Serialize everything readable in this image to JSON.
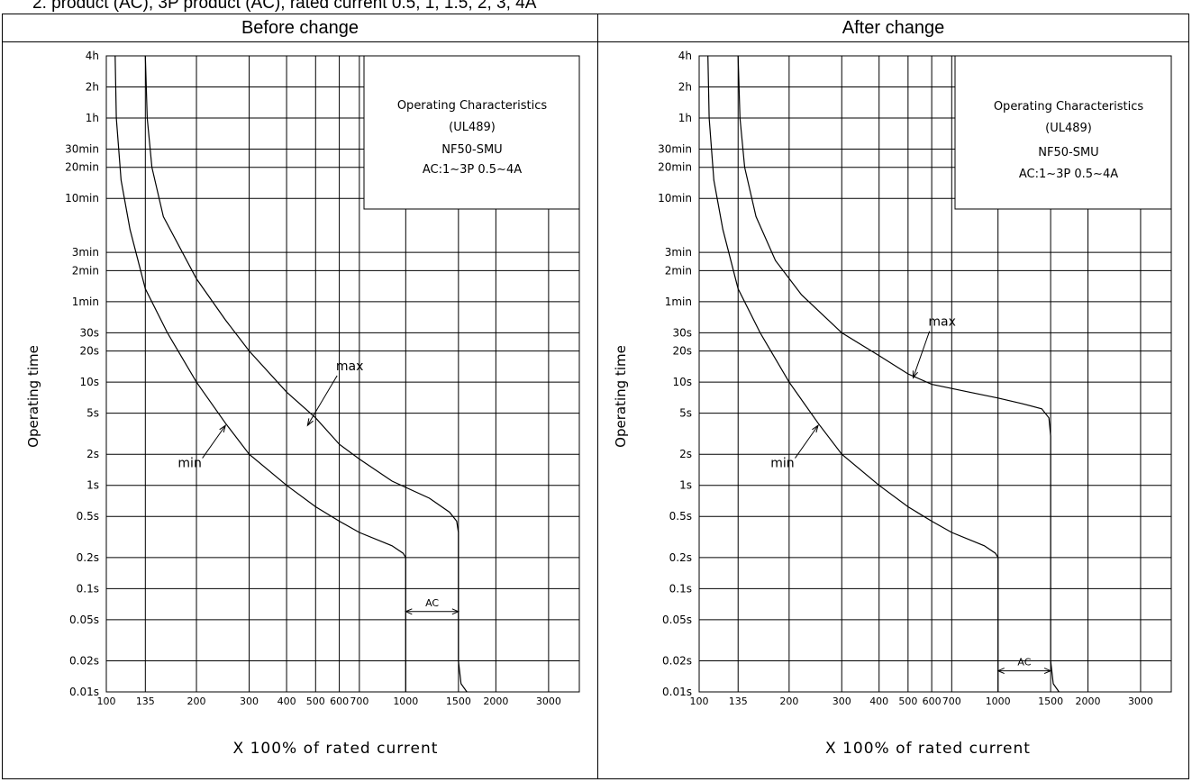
{
  "header_cut_text": "2.  product (AC), 3P product (AC), rated current 0.5, 1, 1.5, 2, 3, 4A",
  "columns": {
    "left_title": "Before change",
    "right_title": "After change"
  },
  "chart_data": [
    {
      "type": "line",
      "panel_title": "Before change",
      "title_box": [
        "Operating Characteristics",
        "(UL489)",
        "NF50-SMU",
        "AC:1∼3P 0.5∼4A"
      ],
      "xlabel": "X 100% of rated current",
      "ylabel": "Operating time",
      "x_scale": "log",
      "y_scale": "log",
      "xlim": [
        100,
        3800
      ],
      "ylim_seconds": [
        0.01,
        14400
      ],
      "x_ticks": [
        {
          "value": 100,
          "label": "100"
        },
        {
          "value": 135,
          "label": "135"
        },
        {
          "value": 200,
          "label": "200"
        },
        {
          "value": 300,
          "label": "300"
        },
        {
          "value": 400,
          "label": "400"
        },
        {
          "value": 500,
          "label": "500"
        },
        {
          "value": 600,
          "label": "600"
        },
        {
          "value": 700,
          "label": "700"
        },
        {
          "value": 1000,
          "label": "1000"
        },
        {
          "value": 1500,
          "label": "1500"
        },
        {
          "value": 2000,
          "label": "2000"
        },
        {
          "value": 3000,
          "label": "3000"
        }
      ],
      "y_ticks": [
        {
          "value": 14400,
          "label": "4h"
        },
        {
          "value": 7200,
          "label": "2h"
        },
        {
          "value": 3600,
          "label": "1h"
        },
        {
          "value": 1800,
          "label": "30min"
        },
        {
          "value": 1200,
          "label": "20min"
        },
        {
          "value": 600,
          "label": "10min"
        },
        {
          "value": 180,
          "label": "3min"
        },
        {
          "value": 120,
          "label": "2min"
        },
        {
          "value": 60,
          "label": "1min"
        },
        {
          "value": 30,
          "label": "30s"
        },
        {
          "value": 20,
          "label": "20s"
        },
        {
          "value": 10,
          "label": "10s"
        },
        {
          "value": 5,
          "label": "5s"
        },
        {
          "value": 2,
          "label": "2s"
        },
        {
          "value": 1,
          "label": "1s"
        },
        {
          "value": 0.5,
          "label": "0.5s"
        },
        {
          "value": 0.2,
          "label": "0.2s"
        },
        {
          "value": 0.1,
          "label": "0.1s"
        },
        {
          "value": 0.05,
          "label": "0.05s"
        },
        {
          "value": 0.02,
          "label": "0.02s"
        },
        {
          "value": 0.01,
          "label": "0.01s"
        }
      ],
      "series": [
        {
          "name": "min",
          "points": [
            [
              107,
              14400
            ],
            [
              108,
              3600
            ],
            [
              112,
              900
            ],
            [
              120,
              300
            ],
            [
              135,
              80
            ],
            [
              160,
              30
            ],
            [
              200,
              10
            ],
            [
              250,
              4
            ],
            [
              300,
              2
            ],
            [
              400,
              1
            ],
            [
              500,
              0.62
            ],
            [
              600,
              0.45
            ],
            [
              700,
              0.35
            ],
            [
              900,
              0.26
            ],
            [
              980,
              0.22
            ],
            [
              1000,
              0.2
            ],
            [
              1000,
              0.01
            ]
          ]
        },
        {
          "name": "max",
          "points": [
            [
              135,
              14400
            ],
            [
              137,
              3600
            ],
            [
              142,
              1200
            ],
            [
              155,
              400
            ],
            [
              200,
              100
            ],
            [
              250,
              40
            ],
            [
              300,
              20
            ],
            [
              400,
              8
            ],
            [
              500,
              4.5
            ],
            [
              600,
              2.5
            ],
            [
              700,
              1.8
            ],
            [
              900,
              1.1
            ],
            [
              1200,
              0.75
            ],
            [
              1400,
              0.55
            ],
            [
              1480,
              0.45
            ],
            [
              1500,
              0.35
            ],
            [
              1500,
              0.02
            ],
            [
              1530,
              0.012
            ],
            [
              1600,
              0.01
            ]
          ]
        }
      ],
      "annotations": [
        {
          "text": "max",
          "label_at": [
            650,
            13
          ],
          "arrow_to": [
            470,
            3.8
          ]
        },
        {
          "text": "min",
          "label_at": [
            190,
            1.5
          ],
          "arrow_to": [
            250,
            3.8
          ]
        }
      ],
      "ac_band": {
        "text": "AC",
        "from": 1000,
        "to": 1500,
        "at_seconds": 0.06
      }
    },
    {
      "type": "line",
      "panel_title": "After change",
      "title_box": [
        "Operating Characteristics",
        "(UL489)",
        "NF50-SMU",
        "AC:1∼3P 0.5∼4A"
      ],
      "xlabel": "X 100% of rated current",
      "ylabel": "Operating time",
      "x_scale": "log",
      "y_scale": "log",
      "xlim": [
        100,
        3800
      ],
      "ylim_seconds": [
        0.01,
        14400
      ],
      "x_ticks": [
        {
          "value": 100,
          "label": "100"
        },
        {
          "value": 135,
          "label": "135"
        },
        {
          "value": 200,
          "label": "200"
        },
        {
          "value": 300,
          "label": "300"
        },
        {
          "value": 400,
          "label": "400"
        },
        {
          "value": 500,
          "label": "500"
        },
        {
          "value": 600,
          "label": "600"
        },
        {
          "value": 700,
          "label": "700"
        },
        {
          "value": 1000,
          "label": "1000"
        },
        {
          "value": 1500,
          "label": "1500"
        },
        {
          "value": 2000,
          "label": "2000"
        },
        {
          "value": 3000,
          "label": "3000"
        }
      ],
      "y_ticks": [
        {
          "value": 14400,
          "label": "4h"
        },
        {
          "value": 7200,
          "label": "2h"
        },
        {
          "value": 3600,
          "label": "1h"
        },
        {
          "value": 1800,
          "label": "30min"
        },
        {
          "value": 1200,
          "label": "20min"
        },
        {
          "value": 600,
          "label": "10min"
        },
        {
          "value": 180,
          "label": "3min"
        },
        {
          "value": 120,
          "label": "2min"
        },
        {
          "value": 60,
          "label": "1min"
        },
        {
          "value": 30,
          "label": "30s"
        },
        {
          "value": 20,
          "label": "20s"
        },
        {
          "value": 10,
          "label": "10s"
        },
        {
          "value": 5,
          "label": "5s"
        },
        {
          "value": 2,
          "label": "2s"
        },
        {
          "value": 1,
          "label": "1s"
        },
        {
          "value": 0.5,
          "label": "0.5s"
        },
        {
          "value": 0.2,
          "label": "0.2s"
        },
        {
          "value": 0.1,
          "label": "0.1s"
        },
        {
          "value": 0.05,
          "label": "0.05s"
        },
        {
          "value": 0.02,
          "label": "0.02s"
        },
        {
          "value": 0.01,
          "label": "0.01s"
        }
      ],
      "series": [
        {
          "name": "min",
          "points": [
            [
              107,
              14400
            ],
            [
              108,
              3600
            ],
            [
              112,
              900
            ],
            [
              120,
              300
            ],
            [
              135,
              80
            ],
            [
              160,
              30
            ],
            [
              200,
              10
            ],
            [
              250,
              4
            ],
            [
              300,
              2
            ],
            [
              400,
              1
            ],
            [
              500,
              0.62
            ],
            [
              600,
              0.45
            ],
            [
              700,
              0.35
            ],
            [
              900,
              0.26
            ],
            [
              980,
              0.22
            ],
            [
              1000,
              0.2
            ],
            [
              1000,
              0.01
            ]
          ]
        },
        {
          "name": "max",
          "points": [
            [
              135,
              14400
            ],
            [
              137,
              3600
            ],
            [
              142,
              1200
            ],
            [
              155,
              400
            ],
            [
              180,
              150
            ],
            [
              220,
              70
            ],
            [
              300,
              30
            ],
            [
              400,
              18
            ],
            [
              500,
              12
            ],
            [
              600,
              9.5
            ],
            [
              800,
              8
            ],
            [
              1000,
              7
            ],
            [
              1200,
              6.2
            ],
            [
              1400,
              5.5
            ],
            [
              1480,
              4.5
            ],
            [
              1500,
              3
            ],
            [
              1500,
              0.02
            ],
            [
              1530,
              0.012
            ],
            [
              1600,
              0.01
            ]
          ]
        }
      ],
      "annotations": [
        {
          "text": "max",
          "label_at": [
            650,
            35
          ],
          "arrow_to": [
            520,
            11
          ]
        },
        {
          "text": "min",
          "label_at": [
            190,
            1.5
          ],
          "arrow_to": [
            250,
            3.8
          ]
        }
      ],
      "ac_band": {
        "text": "AC",
        "from": 1000,
        "to": 1500,
        "at_seconds": 0.016
      }
    }
  ]
}
